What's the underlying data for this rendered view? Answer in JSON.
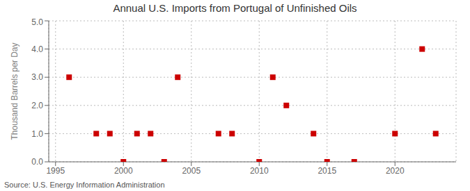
{
  "chart_data": {
    "type": "scatter",
    "title": "Annual U.S. Imports from Portugal of Unfinished Oils",
    "y_label": "Thousand Barrels per Day",
    "annotations": [
      "Source: U.S. Energy Information Administration"
    ],
    "x": [
      1996,
      1998,
      1999,
      2000,
      2001,
      2002,
      2003,
      2004,
      2007,
      2008,
      2010,
      2011,
      2012,
      2014,
      2015,
      2017,
      2020,
      2022,
      2023
    ],
    "values": [
      3.0,
      1.0,
      1.0,
      0.0,
      1.0,
      1.0,
      0.0,
      3.0,
      1.0,
      1.0,
      0.0,
      3.0,
      2.0,
      1.0,
      0.0,
      0.0,
      1.0,
      4.0,
      1.0
    ],
    "color": "#cc0000",
    "marker": "square",
    "xlim": [
      1994.5,
      2024.5
    ],
    "ylim": [
      0.0,
      5.0
    ],
    "xticks": [
      1995,
      2000,
      2005,
      2010,
      2015,
      2020
    ],
    "yticks": [
      {
        "value": 0.0,
        "label": "0.0"
      },
      {
        "value": 1.0,
        "label": "1.0"
      },
      {
        "value": 2.0,
        "label": "2.0"
      },
      {
        "value": 3.0,
        "label": "3.0"
      },
      {
        "value": 4.0,
        "label": "4.0"
      },
      {
        "value": 5.0,
        "label": "5.0"
      }
    ],
    "grid": true
  }
}
